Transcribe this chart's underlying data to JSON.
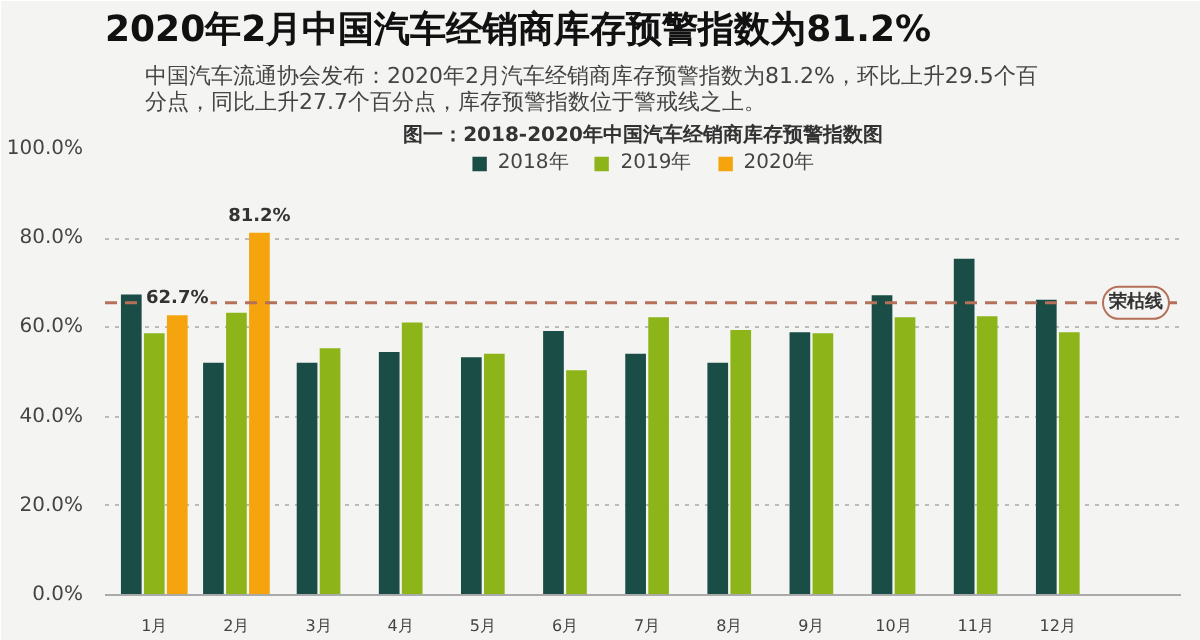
{
  "chart_data": {
    "type": "bar",
    "title": "2020年2月中国汽车经销商库存预警指数为81.2%",
    "subtitle": "中国汽车流通协会发布：2020年2月汽车经销商库存预警指数为81.2%，环比上升29.5个百分点，同比上升27.7个百分点，库存预警指数位于警戒线之上。",
    "annotations": [
      "图一：2018-2020年中国汽车经销商库存预警指数图"
    ],
    "categories": [
      "1月",
      "2月",
      "3月",
      "4月",
      "5月",
      "6月",
      "7月",
      "8月",
      "9月",
      "10月",
      "11月",
      "12月"
    ],
    "series": [
      {
        "name": "2018年",
        "color": "#1b4d47",
        "values": [
          67.4,
          52.1,
          52.1,
          54.5,
          53.3,
          59.2,
          54.1,
          52.1,
          58.9,
          67.2,
          75.4,
          66.2
        ]
      },
      {
        "name": "2019年",
        "color": "#8db51a",
        "values": [
          58.7,
          63.3,
          55.3,
          61.1,
          54.1,
          50.4,
          62.3,
          59.4,
          58.7,
          62.3,
          62.5,
          58.9
        ]
      },
      {
        "name": "2020年",
        "color": "#f5a40d",
        "values": [
          62.7,
          81.2,
          null,
          null,
          null,
          null,
          null,
          null,
          null,
          null,
          null,
          null
        ],
        "value_labels": [
          "62.7%",
          "81.2%",
          null,
          null,
          null,
          null,
          null,
          null,
          null,
          null,
          null,
          null
        ]
      }
    ],
    "ylim": [
      0,
      100
    ],
    "yticks": [
      {
        "value": 0,
        "label": "0.0%"
      },
      {
        "value": 20,
        "label": "20.0%"
      },
      {
        "value": 40,
        "label": "40.0%"
      },
      {
        "value": 60,
        "label": "60.0%"
      },
      {
        "value": 80,
        "label": "80.0%"
      },
      {
        "value": 100,
        "label": "100.0%"
      }
    ],
    "ref_lines": [
      {
        "axis": "y",
        "value": 65.5,
        "label": "荣枯线",
        "color": "#b5705a",
        "line_style": "dashed"
      }
    ],
    "grid": "y",
    "legend": "top"
  }
}
